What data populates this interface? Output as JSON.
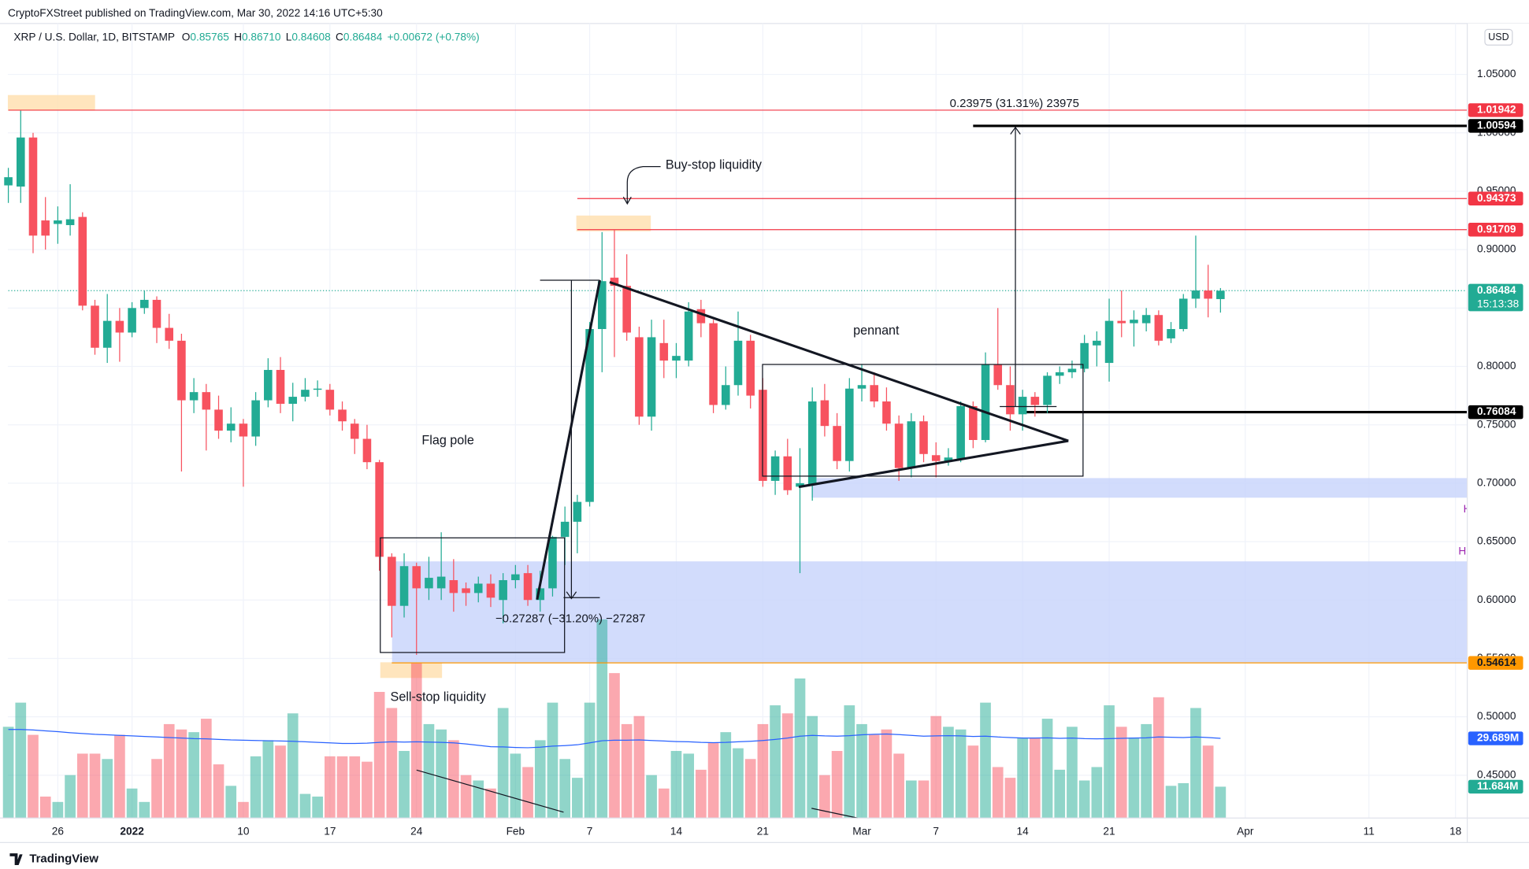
{
  "header": {
    "published": "CryptoFXStreet published on TradingView.com, Mar 30, 2022 14:16 UTC+5:30",
    "brand": "TradingView"
  },
  "chart_data": {
    "type": "candlestick",
    "title": "XRP / U.S. Dollar, 1D, BITSTAMP",
    "ohlc_legend": [
      {
        "label": "O",
        "value": "0.85765"
      },
      {
        "label": "H",
        "value": "0.86710"
      },
      {
        "label": "L",
        "value": "0.84608"
      },
      {
        "label": "C",
        "value": "0.86484"
      }
    ],
    "change": "+0.00672 (+0.78%)",
    "currency": "USD",
    "countdown": "15:13:38",
    "up_color": "#22ab94",
    "down_color": "#f7525f",
    "grid": true,
    "xlim": [
      -0.04,
      117.95
    ],
    "xticks": [
      {
        "value": 4,
        "label": "26"
      },
      {
        "value": 10,
        "label": "2022"
      },
      {
        "value": 19,
        "label": "10"
      },
      {
        "value": 26,
        "label": "17"
      },
      {
        "value": 33,
        "label": "24"
      },
      {
        "value": 41,
        "label": "Feb"
      },
      {
        "value": 47,
        "label": "7"
      },
      {
        "value": 54,
        "label": "14"
      },
      {
        "value": 61,
        "label": "21"
      },
      {
        "value": 69,
        "label": "Mar"
      },
      {
        "value": 75,
        "label": "7"
      },
      {
        "value": 82,
        "label": "14"
      },
      {
        "value": 89,
        "label": "21"
      },
      {
        "value": 100,
        "label": "Apr"
      },
      {
        "value": 110,
        "label": "11"
      },
      {
        "value": 117,
        "label": "18"
      }
    ],
    "ylim": [
      0.4133,
      1.0936
    ],
    "yticks": [
      {
        "value": 0.45,
        "label": "0.45000"
      },
      {
        "value": 0.5,
        "label": "0.50000"
      },
      {
        "value": 0.55,
        "label": "0.55000"
      },
      {
        "value": 0.6,
        "label": "0.60000"
      },
      {
        "value": 0.65,
        "label": "0.65000"
      },
      {
        "value": 0.7,
        "label": "0.70000"
      },
      {
        "value": 0.75,
        "label": "0.75000"
      },
      {
        "value": 0.8,
        "label": "0.80000"
      },
      {
        "value": 0.85,
        "label": "0.85000"
      },
      {
        "value": 0.9,
        "label": "0.90000"
      },
      {
        "value": 0.95,
        "label": "0.95000"
      },
      {
        "value": 1.0,
        "label": "1.00000"
      },
      {
        "value": 1.05,
        "label": "1.05000"
      }
    ],
    "open": [
      0.955,
      0.954,
      0.996,
      0.925,
      0.922,
      0.921,
      0.928,
      0.852,
      0.816,
      0.839,
      0.829,
      0.85,
      0.857,
      0.833,
      0.822,
      0.771,
      0.778,
      0.763,
      0.745,
      0.751,
      0.74,
      0.771,
      0.797,
      0.768,
      0.774,
      0.78,
      0.78,
      0.763,
      0.751,
      0.738,
      0.718,
      0.637,
      0.595,
      0.629,
      0.61,
      0.61,
      0.617,
      0.61,
      0.606,
      0.614,
      0.6,
      0.617,
      0.623,
      0.6,
      0.61,
      0.654,
      0.667,
      0.684,
      0.832,
      0.876,
      0.869,
      0.825,
      0.757,
      0.82,
      0.805,
      0.805,
      0.849,
      0.837,
      0.767,
      0.784,
      0.822,
      0.78,
      0.702,
      0.723,
      0.697,
      0.699,
      0.771,
      0.749,
      0.719,
      0.781,
      0.784,
      0.77,
      0.751,
      0.713,
      0.753,
      0.724,
      0.719,
      0.721,
      0.766,
      0.737,
      0.802,
      0.784,
      0.759,
      0.774,
      0.767,
      0.792,
      0.795,
      0.798,
      0.818,
      0.803,
      0.839,
      0.837,
      0.837,
      0.844,
      0.824,
      0.832,
      0.858,
      0.865,
      0.85765
    ],
    "high": [
      0.97,
      1.019,
      1.0,
      0.945,
      0.937,
      0.956,
      0.932,
      0.857,
      0.862,
      0.85,
      0.855,
      0.865,
      0.86,
      0.845,
      0.828,
      0.79,
      0.785,
      0.775,
      0.765,
      0.755,
      0.778,
      0.807,
      0.808,
      0.786,
      0.79,
      0.788,
      0.785,
      0.77,
      0.755,
      0.75,
      0.72,
      0.64,
      0.64,
      0.632,
      0.637,
      0.658,
      0.635,
      0.615,
      0.62,
      0.622,
      0.623,
      0.63,
      0.63,
      0.625,
      0.655,
      0.68,
      0.69,
      0.838,
      0.915,
      0.917,
      0.896,
      0.834,
      0.84,
      0.84,
      0.82,
      0.855,
      0.857,
      0.84,
      0.8,
      0.847,
      0.827,
      0.79,
      0.728,
      0.738,
      0.73,
      0.782,
      0.785,
      0.76,
      0.79,
      0.802,
      0.795,
      0.782,
      0.758,
      0.76,
      0.758,
      0.735,
      0.73,
      0.77,
      0.77,
      0.812,
      0.85,
      0.8,
      0.78,
      0.778,
      0.795,
      0.8,
      0.805,
      0.827,
      0.83,
      0.858,
      0.865,
      0.848,
      0.85,
      0.848,
      0.838,
      0.862,
      0.912,
      0.887,
      0.8671
    ],
    "low": [
      0.94,
      0.94,
      0.897,
      0.9,
      0.905,
      0.912,
      0.848,
      0.81,
      0.803,
      0.804,
      0.825,
      0.845,
      0.82,
      0.815,
      0.71,
      0.76,
      0.728,
      0.738,
      0.735,
      0.697,
      0.732,
      0.765,
      0.76,
      0.753,
      0.77,
      0.774,
      0.758,
      0.745,
      0.725,
      0.712,
      0.625,
      0.568,
      0.585,
      0.553,
      0.6,
      0.6,
      0.59,
      0.595,
      0.598,
      0.594,
      0.58,
      0.61,
      0.595,
      0.59,
      0.603,
      0.63,
      0.64,
      0.68,
      0.795,
      0.808,
      0.822,
      0.75,
      0.745,
      0.79,
      0.79,
      0.8,
      0.825,
      0.76,
      0.763,
      0.775,
      0.764,
      0.697,
      0.69,
      0.69,
      0.623,
      0.685,
      0.74,
      0.712,
      0.71,
      0.77,
      0.765,
      0.745,
      0.702,
      0.705,
      0.718,
      0.705,
      0.715,
      0.718,
      0.73,
      0.735,
      0.78,
      0.745,
      0.745,
      0.757,
      0.76,
      0.785,
      0.79,
      0.795,
      0.8,
      0.787,
      0.825,
      0.817,
      0.83,
      0.818,
      0.82,
      0.83,
      0.85,
      0.842,
      0.84608
    ],
    "close": [
      0.962,
      0.996,
      0.912,
      0.912,
      0.925,
      0.926,
      0.852,
      0.816,
      0.839,
      0.829,
      0.85,
      0.857,
      0.833,
      0.822,
      0.771,
      0.778,
      0.763,
      0.745,
      0.751,
      0.74,
      0.771,
      0.797,
      0.768,
      0.774,
      0.78,
      0.781,
      0.763,
      0.753,
      0.738,
      0.718,
      0.637,
      0.595,
      0.629,
      0.61,
      0.619,
      0.62,
      0.606,
      0.606,
      0.614,
      0.602,
      0.617,
      0.622,
      0.6,
      0.61,
      0.654,
      0.667,
      0.684,
      0.832,
      0.873,
      0.869,
      0.829,
      0.757,
      0.825,
      0.805,
      0.809,
      0.847,
      0.837,
      0.767,
      0.784,
      0.822,
      0.775,
      0.702,
      0.723,
      0.694,
      0.7,
      0.77,
      0.749,
      0.719,
      0.781,
      0.784,
      0.77,
      0.751,
      0.713,
      0.753,
      0.725,
      0.719,
      0.722,
      0.766,
      0.737,
      0.802,
      0.784,
      0.759,
      0.774,
      0.767,
      0.792,
      0.795,
      0.798,
      0.82,
      0.822,
      0.839,
      0.837,
      0.84,
      0.844,
      0.822,
      0.832,
      0.858,
      0.865,
      0.858,
      0.86484
    ],
    "volume": {
      "ylim": [
        0,
        296
      ],
      "values": [
        34,
        43,
        31,
        8,
        6,
        16,
        24,
        24,
        22,
        31,
        11,
        6,
        22,
        35,
        33,
        32,
        37,
        20,
        12,
        6,
        23,
        29,
        27,
        39,
        9,
        8,
        23,
        23,
        23,
        21,
        47,
        41,
        25,
        58,
        35,
        33,
        29,
        16,
        14,
        11,
        41,
        24,
        19,
        29,
        43,
        22,
        15,
        43,
        74,
        54,
        35,
        38,
        16,
        11,
        25,
        24,
        18,
        28,
        32,
        26,
        22,
        35,
        42,
        39,
        52,
        38,
        16,
        25,
        42,
        35,
        31,
        33,
        24,
        14,
        14,
        38,
        34,
        33,
        27,
        43,
        19,
        15,
        30,
        30,
        37,
        18,
        34,
        14,
        19,
        42,
        34,
        30,
        35,
        45,
        12,
        13,
        41,
        27,
        11.684
      ],
      "last_label": "11.684M",
      "ma": [
        33,
        33,
        32.8,
        32.5,
        32.2,
        31.8,
        31.5,
        31.2,
        31,
        30.8,
        30.6,
        30.4,
        30.2,
        30,
        29.8,
        29.6,
        29.5,
        29.3,
        29.1,
        29,
        28.9,
        28.8,
        28.7,
        28.6,
        28.4,
        28.2,
        28,
        27.8,
        27.8,
        27.9,
        28.2,
        28.4,
        28.3,
        28.4,
        28.3,
        28.2,
        28,
        27.6,
        27.1,
        26.6,
        26.5,
        26.3,
        26.2,
        26.4,
        26.8,
        27,
        27.3,
        28,
        28.8,
        29,
        29,
        29.1,
        28.9,
        28.7,
        28.5,
        28.4,
        28.2,
        28.1,
        28.2,
        28.4,
        28.6,
        28.9,
        29.3,
        29.8,
        30.5,
        30.8,
        30.6,
        30.5,
        30.7,
        31,
        31.2,
        31.3,
        31.1,
        30.8,
        30.5,
        30.6,
        30.7,
        30.6,
        30.4,
        30.5,
        30.2,
        30,
        29.8,
        29.8,
        29.9,
        29.7,
        29.8,
        29.6,
        29.5,
        29.6,
        29.7,
        29.8,
        29.9,
        30.2,
        30.1,
        30,
        30.2,
        30,
        29.689
      ],
      "ma_label": "29.689M",
      "ma_color": "#2962ff"
    },
    "levels": [
      {
        "value": 1.01942,
        "color": "#f23645",
        "start": 0,
        "width": 1
      },
      {
        "value": 1.00594,
        "color": "#000000",
        "start": 78,
        "width": 2.5
      },
      {
        "value": 0.94373,
        "color": "#f23645",
        "start": 46,
        "width": 1
      },
      {
        "value": 0.91709,
        "color": "#f23645",
        "start": 46,
        "width": 1
      },
      {
        "value": 0.86484,
        "color": "#22ab94",
        "start": 0,
        "width": 1,
        "style": "dotted"
      },
      {
        "value": 0.76084,
        "color": "#000000",
        "start": 82,
        "width": 2.5
      },
      {
        "value": 0.54614,
        "color": "#ff9800",
        "start": 31,
        "width": 1
      }
    ],
    "annotations": {
      "measure_up": "0.23975 (31.31%) 23975",
      "buy_stop": "Buy-stop liquidity",
      "pennant": "pennant",
      "flag_pole": "Flag pole",
      "measure_down": "−0.27287 (−31.20%) −27287",
      "sell_stop": "Sell-stop liquidity"
    },
    "edge_marks": [
      "H",
      "H"
    ]
  }
}
